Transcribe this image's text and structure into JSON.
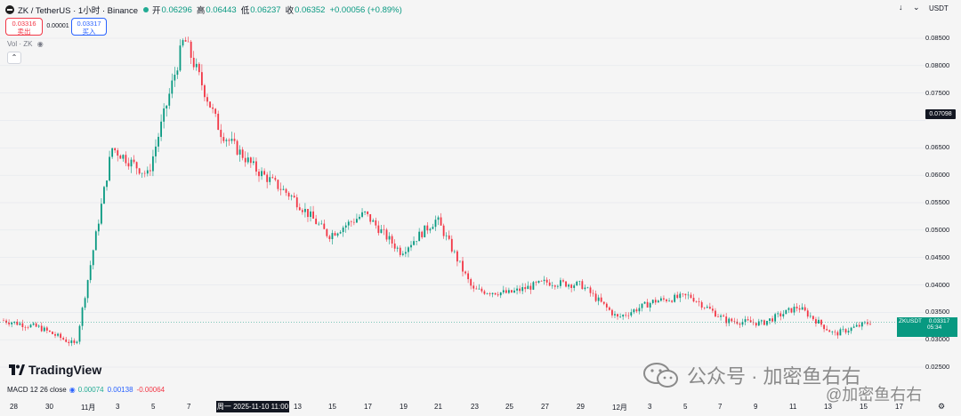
{
  "header": {
    "symbol_title": "ZK / TetherUS · 1小时 · Binance",
    "ohlc": [
      {
        "k": "开",
        "v": "0.06296"
      },
      {
        "k": "高",
        "v": "0.06443"
      },
      {
        "k": "低",
        "v": "0.06237"
      },
      {
        "k": "收",
        "v": "0.06352"
      }
    ],
    "change": "+0.00056 (+0.89%)",
    "currency": "USDT"
  },
  "trade": {
    "sell_price": "0.03316",
    "sell_label": "卖出",
    "spread": "0.00001",
    "buy_price": "0.03317",
    "buy_label": "买入"
  },
  "volume_label": "Vol · ZK",
  "price_axis": [
    "0.08500",
    "0.08000",
    "0.07500",
    "0.07098",
    "0.06500",
    "0.06000",
    "0.05500",
    "0.05000",
    "0.04500",
    "0.04000",
    "0.03500",
    "0.03000",
    "0.02500"
  ],
  "crosshair_price": "0.07098",
  "last_tag": {
    "symbol": "ZKUSDT",
    "price": "0.03317",
    "countdown": "05:34"
  },
  "logo_text": "TradingView",
  "macd": {
    "label": "MACD 12 26 close",
    "v1": "0.00074",
    "v2": "0.00138",
    "v3": "-0.00064"
  },
  "time_axis": [
    "28",
    "30",
    "11月",
    "3",
    "5",
    "7",
    "13",
    "15",
    "17",
    "19",
    "21",
    "23",
    "25",
    "27",
    "29",
    "12月",
    "3",
    "5",
    "7",
    "9",
    "11",
    "13",
    "15",
    "17",
    "19"
  ],
  "crosshair_time": "周一 2025-11-10  11:00",
  "watermark": "公众号 · 加密鱼右右",
  "watermark2": "@加密鱼右右",
  "colors": {
    "up": "#089981",
    "down": "#f23645",
    "grid": "#e0e3eb",
    "bg": "#f5f5f5"
  },
  "chart_data": {
    "type": "line",
    "title": "ZK / TetherUS · 1小时 · Binance",
    "x": [
      "28",
      "30",
      "11月",
      "3",
      "5",
      "7",
      "9",
      "11",
      "13",
      "15",
      "17",
      "19",
      "21",
      "23",
      "25",
      "27",
      "29",
      "12月",
      "3",
      "5",
      "7",
      "9",
      "11",
      "13",
      "15"
    ],
    "series": [
      {
        "values": [
          0.0335,
          0.0322,
          0.029,
          0.065,
          0.06,
          0.085,
          0.068,
          0.061,
          0.056,
          0.049,
          0.053,
          0.046,
          0.052,
          0.039,
          0.0385,
          0.0405,
          0.04,
          0.034,
          0.037,
          0.038,
          0.0335,
          0.033,
          0.036,
          0.031,
          0.0332
        ]
      }
    ],
    "ylim": [
      0.0245,
      0.0865
    ]
  }
}
